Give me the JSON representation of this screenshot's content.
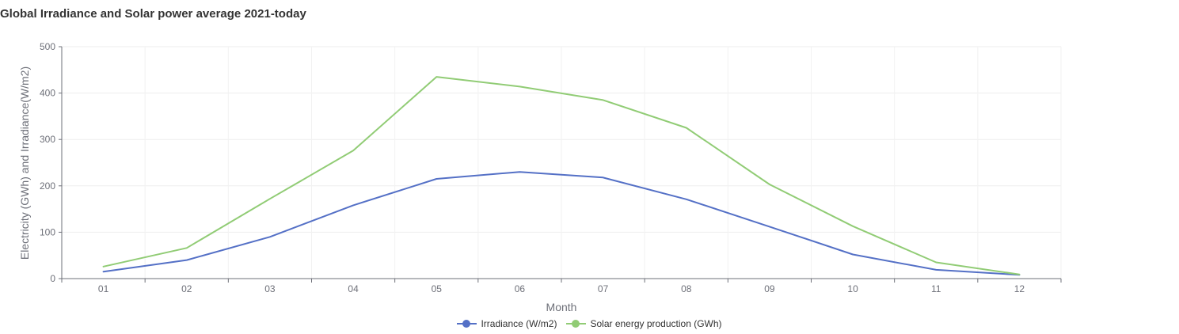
{
  "chart_data": {
    "type": "line",
    "title": "Global Irradiance and Solar power average 2021-today",
    "xlabel": "Month",
    "ylabel": "Electricity (GWh) and Irradiance(W/m2)",
    "categories": [
      "01",
      "02",
      "03",
      "04",
      "05",
      "06",
      "07",
      "08",
      "09",
      "10",
      "11",
      "12"
    ],
    "ylim": [
      0,
      500
    ],
    "yticks": [
      0,
      100,
      200,
      300,
      400,
      500
    ],
    "grid": true,
    "legend_position": "bottom",
    "series": [
      {
        "name": "Irradiance (W/m2)",
        "color": "#5470c6",
        "values": [
          15,
          40,
          90,
          158,
          215,
          230,
          218,
          171,
          112,
          52,
          19,
          8
        ]
      },
      {
        "name": "Solar energy production (GWh)",
        "color": "#91cc75",
        "values": [
          26,
          66,
          172,
          276,
          435,
          414,
          385,
          325,
          203,
          113,
          35,
          9
        ]
      }
    ]
  }
}
